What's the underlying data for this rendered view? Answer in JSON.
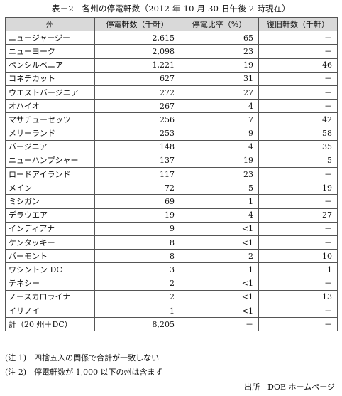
{
  "title": "表－2　各州の停電軒数（2012 年 10 月 30 日午後 2 時現在）",
  "headers": [
    "州",
    "停電軒数（千軒）",
    "停電比率（%）",
    "復旧軒数（千軒）"
  ],
  "rows": [
    [
      "ニュージャージー",
      "2,615",
      "65",
      "－"
    ],
    [
      "ニューヨーク",
      "2,098",
      "23",
      "－"
    ],
    [
      "ペンシルベニア",
      "1,221",
      "19",
      "46"
    ],
    [
      "コネチカット",
      "627",
      "31",
      "－"
    ],
    [
      "ウエストバージニア",
      "272",
      "27",
      "－"
    ],
    [
      "オハイオ",
      "267",
      "4",
      "－"
    ],
    [
      "マサチューセッツ",
      "256",
      "7",
      "42"
    ],
    [
      "メリーランド",
      "253",
      "9",
      "58"
    ],
    [
      "バージニア",
      "148",
      "4",
      "35"
    ],
    [
      "ニューハンプシャー",
      "137",
      "19",
      "5"
    ],
    [
      "ロードアイランド",
      "117",
      "23",
      "－"
    ],
    [
      "メイン",
      "72",
      "5",
      "19"
    ],
    [
      "ミシガン",
      "69",
      "1",
      "－"
    ],
    [
      "デラウエア",
      "19",
      "4",
      "27"
    ],
    [
      "インディアナ",
      "9",
      "<1",
      "－"
    ],
    [
      "ケンタッキー",
      "8",
      "<1",
      "－"
    ],
    [
      "バーモント",
      "8",
      "2",
      "10"
    ],
    [
      "ワシントン DC",
      "3",
      "1",
      "1"
    ],
    [
      "テネシー",
      "2",
      "<1",
      "－"
    ],
    [
      "ノースカロライナ",
      "2",
      "<1",
      "13"
    ],
    [
      "イリノイ",
      "1",
      "<1",
      "－"
    ]
  ],
  "total": [
    "計（20 州＋DC）",
    "8,205",
    "－",
    "－"
  ],
  "notes": [
    "(注 1)　四捨五入の関係で合計が一致しない",
    "(注 2)　停電軒数が 1,000 以下の州は含まず"
  ],
  "source": "出所　DOE ホームページ"
}
